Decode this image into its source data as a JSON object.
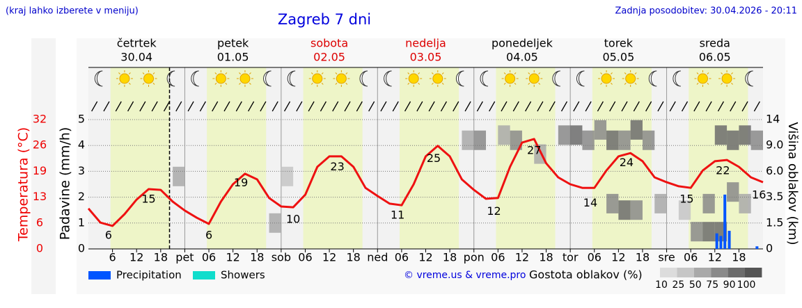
{
  "chart_data": {
    "type": "meteogram",
    "subtitle": "(kraj lahko izberete v meniju)",
    "title": "Zagreb 7 dni",
    "update": "Zadnja posodobitev: 30.04.2026 - 20:11",
    "credit": "© vreme.us & vreme.pro",
    "days": [
      {
        "name": "četrtek",
        "date": "30.04",
        "weekend": false
      },
      {
        "name": "petek",
        "date": "01.05",
        "weekend": false
      },
      {
        "name": "sobota",
        "date": "02.05",
        "weekend": true
      },
      {
        "name": "nedelja",
        "date": "03.05",
        "weekend": true
      },
      {
        "name": "ponedeljek",
        "date": "04.05",
        "weekend": false
      },
      {
        "name": "torek",
        "date": "05.05",
        "weekend": false
      },
      {
        "name": "sreda",
        "date": "06.05",
        "weekend": false
      }
    ],
    "xlim": [
      0,
      168
    ],
    "xticks": [
      6,
      12,
      18,
      {
        "value": 24,
        "label": "pet"
      },
      {
        "value": 30,
        "label": "06"
      },
      {
        "value": 36,
        "label": "12"
      },
      {
        "value": 42,
        "label": "18"
      },
      {
        "value": 48,
        "label": "sob"
      },
      {
        "value": 54,
        "label": "06"
      },
      {
        "value": 60,
        "label": "12"
      },
      {
        "value": 66,
        "label": "18"
      },
      {
        "value": 72,
        "label": "ned"
      },
      {
        "value": 78,
        "label": "06"
      },
      {
        "value": 84,
        "label": "12"
      },
      {
        "value": 90,
        "label": "18"
      },
      {
        "value": 96,
        "label": "pon"
      },
      {
        "value": 102,
        "label": "06"
      },
      {
        "value": 108,
        "label": "12"
      },
      {
        "value": 114,
        "label": "18"
      },
      {
        "value": 120,
        "label": "tor"
      },
      {
        "value": 126,
        "label": "06"
      },
      {
        "value": 132,
        "label": "12"
      },
      {
        "value": 138,
        "label": "18"
      },
      {
        "value": 144,
        "label": "sre"
      },
      {
        "value": 150,
        "label": "06"
      },
      {
        "value": 156,
        "label": "12"
      },
      {
        "value": 162,
        "label": "18"
      }
    ],
    "x_ticks_first": [
      {
        "value": 6,
        "label": "06"
      },
      {
        "value": 12,
        "label": "12"
      },
      {
        "value": 18,
        "label": "18"
      }
    ],
    "daylight_hours": [
      5.5,
      20.25
    ],
    "now_x": 20.2,
    "ylabel": "Padavine (mm/h)",
    "ylim": [
      0,
      5
    ],
    "yticks": [
      0,
      1,
      2,
      3,
      4,
      5
    ],
    "y2label": "Temperatura (°C)",
    "y2lim": [
      0,
      32
    ],
    "y2ticks": [
      0,
      {
        "value": 6.4,
        "label": "6"
      },
      {
        "value": 12.8,
        "label": "13"
      },
      {
        "value": 19.2,
        "label": "19"
      },
      {
        "value": 25.6,
        "label": "26"
      },
      32
    ],
    "y3label": "Višina oblakov (km)",
    "y3ticks": [
      0,
      1.5,
      3.5,
      {
        "value": 6,
        "label": "6.0"
      },
      {
        "value": 9,
        "label": "9.0"
      },
      14
    ],
    "temperature": {
      "color": "#ee1111",
      "axis": "y2",
      "x": [
        0,
        3,
        6,
        9,
        12,
        15,
        18,
        21,
        24,
        27,
        30,
        33,
        36,
        39,
        42,
        45,
        48,
        51,
        54,
        57,
        60,
        63,
        66,
        69,
        72,
        75,
        78,
        81,
        84,
        87,
        90,
        93,
        96,
        99,
        102,
        105,
        108,
        111,
        114,
        117,
        120,
        123,
        126,
        129,
        132,
        135,
        138,
        141,
        144,
        147,
        150,
        153,
        156,
        159,
        162,
        165,
        168
      ],
      "values": [
        10,
        6.5,
        5.7,
        8.6,
        12.2,
        14.8,
        14.6,
        11.7,
        9.5,
        7.7,
        6.2,
        11.7,
        16,
        18.6,
        17.2,
        12.6,
        10.5,
        10.3,
        13.4,
        20.3,
        22.9,
        22.9,
        20.3,
        15.1,
        13.1,
        11.2,
        10.8,
        16,
        22.9,
        25.5,
        22.9,
        17.2,
        14.6,
        12.4,
        12.6,
        20.3,
        26.3,
        27.2,
        21.2,
        17.7,
        16,
        15.1,
        15.1,
        19.4,
        22.9,
        23.7,
        21.7,
        17.7,
        16.5,
        15.5,
        15.1,
        19.4,
        21.7,
        22,
        20.3,
        17.7,
        16.5
      ]
    },
    "extremes": {
      "x": [
        5,
        15,
        30,
        38,
        51,
        62,
        77,
        86,
        101,
        111,
        125,
        134,
        149,
        158,
        167
      ],
      "values": [
        6,
        15,
        6,
        19,
        10,
        23,
        11,
        25,
        12,
        27,
        14,
        24,
        15,
        22,
        16
      ]
    },
    "precipitation": {
      "name": "Precipitation",
      "color": "#0055ff",
      "x": [
        156.5,
        157.5,
        158.5,
        159.6,
        166.5
      ],
      "values": [
        0.6,
        0.5,
        2.1,
        0.7,
        0.1
      ]
    },
    "showers": {
      "name": "Showers",
      "color": "#11ddcc"
    },
    "clouds": {
      "label": "Gostota oblakov (%)",
      "x": [
        21,
        45,
        48,
        93,
        96,
        102,
        105,
        111,
        117,
        120,
        123,
        126,
        129,
        132,
        135,
        138,
        129,
        132,
        135,
        141,
        147,
        150,
        153,
        156,
        153,
        156,
        159,
        162,
        165,
        159,
        162
      ],
      "heights": [
        5.5,
        1.5,
        5.5,
        10,
        10,
        11,
        10,
        8,
        11,
        11,
        10,
        12,
        10,
        10,
        12,
        10,
        3,
        2.5,
        2.5,
        3,
        2.5,
        1,
        1,
        1,
        3,
        11,
        10,
        11,
        10,
        4,
        3
      ],
      "density": [
        50,
        50,
        25,
        50,
        75,
        50,
        75,
        50,
        75,
        90,
        75,
        75,
        90,
        75,
        90,
        75,
        75,
        90,
        75,
        50,
        25,
        75,
        90,
        90,
        75,
        90,
        90,
        90,
        75,
        75,
        50
      ],
      "levels": [
        10,
        25,
        50,
        75,
        90,
        100
      ],
      "colors": [
        "#dcdcdc",
        "#c6c6c6",
        "#a9a9a9",
        "#8a8a8a",
        "#6c6c6c",
        "#555555"
      ]
    }
  }
}
